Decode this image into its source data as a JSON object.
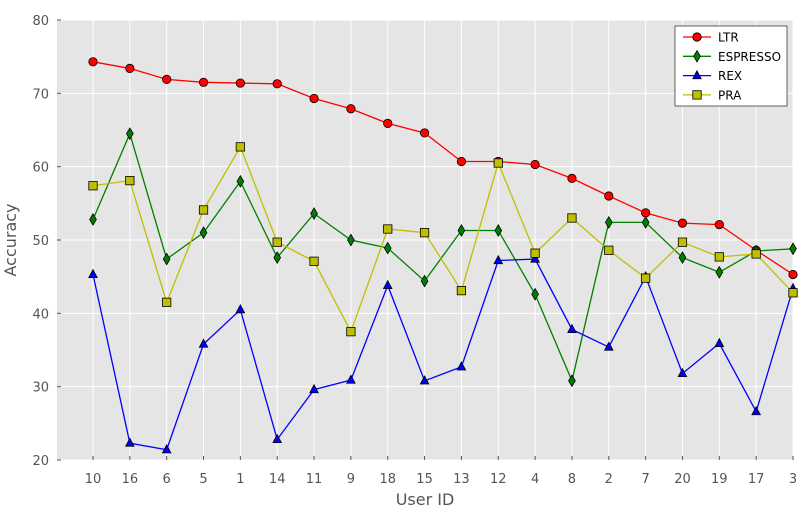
{
  "chart_data": {
    "type": "line",
    "title": "",
    "xlabel": "User ID",
    "ylabel": "Accuracy",
    "ylim": [
      20,
      80
    ],
    "yticks": [
      20,
      30,
      40,
      50,
      60,
      70,
      80
    ],
    "grid": true,
    "legend_position": "top-right",
    "categories": [
      "10",
      "16",
      "6",
      "5",
      "1",
      "14",
      "11",
      "9",
      "18",
      "15",
      "13",
      "12",
      "4",
      "8",
      "2",
      "7",
      "20",
      "19",
      "17",
      "3"
    ],
    "series": [
      {
        "name": "LTR",
        "color": "#ff0000",
        "marker": "circle",
        "values": [
          74.3,
          73.4,
          71.9,
          71.5,
          71.4,
          71.3,
          69.3,
          67.9,
          65.9,
          64.6,
          60.7,
          60.7,
          60.3,
          58.4,
          56.0,
          53.7,
          52.3,
          52.1,
          48.6,
          45.3
        ]
      },
      {
        "name": "ESPRESSO",
        "color": "#008000",
        "marker": "diamond",
        "values": [
          52.8,
          64.5,
          47.4,
          51.0,
          58.0,
          47.6,
          53.6,
          50.0,
          48.9,
          44.4,
          51.3,
          51.3,
          42.6,
          30.8,
          52.4,
          52.4,
          47.6,
          45.6,
          48.5,
          48.8
        ]
      },
      {
        "name": "REX",
        "color": "#0000ff",
        "marker": "triangle",
        "values": [
          45.3,
          22.3,
          21.4,
          35.8,
          40.5,
          22.8,
          29.6,
          30.9,
          43.8,
          30.8,
          32.7,
          47.2,
          47.4,
          37.8,
          35.4,
          45.0,
          31.8,
          35.9,
          26.6,
          43.4
        ]
      },
      {
        "name": "PRA",
        "color": "#bfbf00",
        "marker": "square",
        "values": [
          57.4,
          58.1,
          41.5,
          54.1,
          62.7,
          49.7,
          47.1,
          37.5,
          51.5,
          51.0,
          43.1,
          60.5,
          48.2,
          53.0,
          48.6,
          44.8,
          49.7,
          47.7,
          48.1,
          42.8
        ]
      }
    ]
  }
}
